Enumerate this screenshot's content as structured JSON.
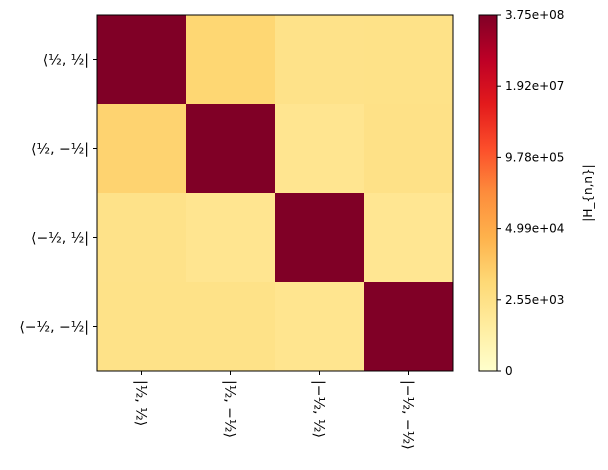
{
  "chart_data": {
    "type": "heatmap",
    "row_labels": [
      "⟨½, ½|",
      "⟨½, −½|",
      "⟨−½, ½|",
      "⟨−½, −½|"
    ],
    "col_labels": [
      "|½, ½⟩",
      "|½, −½⟩",
      "|−½, ½⟩",
      "|−½, −½⟩"
    ],
    "values": [
      [
        375000000,
        6000,
        2000,
        2200
      ],
      [
        7000,
        375000000,
        900,
        2500
      ],
      [
        2000,
        900,
        375000000,
        700
      ],
      [
        2200,
        2200,
        1000,
        375000000
      ]
    ],
    "colorbar": {
      "label": "|H_{n,n}|",
      "scale": "log-like",
      "tick_labels": [
        "0",
        "2.55e+03",
        "4.99e+04",
        "9.78e+05",
        "1.92e+07",
        "3.75e+08"
      ],
      "tick_values": [
        0,
        2550,
        49900,
        978000,
        19200000,
        375000000
      ],
      "colormap": "YlOrRd"
    }
  }
}
